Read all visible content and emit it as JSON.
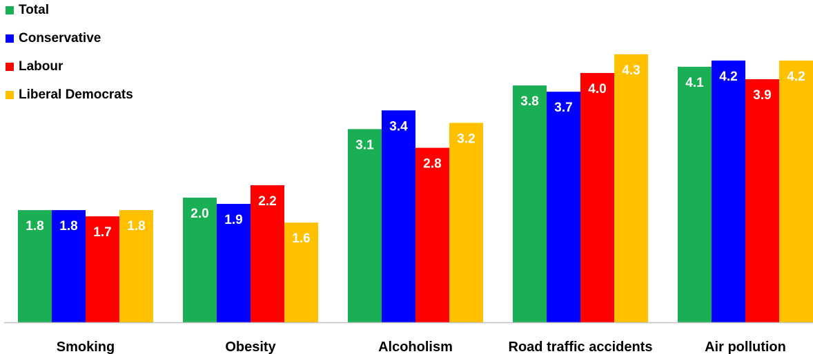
{
  "chart_data": {
    "type": "bar",
    "title": "",
    "xlabel": "",
    "ylabel": "",
    "ylim": [
      0,
      4.6
    ],
    "grid": false,
    "legend_position": "top-left",
    "value_labels": true,
    "categories": [
      "Smoking",
      "Obesity",
      "Alcoholism",
      "Road traffic accidents",
      "Air pollution"
    ],
    "series": [
      {
        "name": "Total",
        "color": "#1aaf54",
        "values": [
          1.8,
          2.0,
          3.1,
          3.8,
          4.1
        ]
      },
      {
        "name": "Conservative",
        "color": "#0000ff",
        "values": [
          1.8,
          1.9,
          3.4,
          3.7,
          4.2
        ]
      },
      {
        "name": "Labour",
        "color": "#ff0000",
        "values": [
          1.7,
          2.2,
          2.8,
          4.0,
          3.9
        ]
      },
      {
        "name": "Liberal Democrats",
        "color": "#ffc000",
        "values": [
          1.8,
          1.6,
          3.2,
          4.3,
          4.2
        ]
      }
    ]
  }
}
